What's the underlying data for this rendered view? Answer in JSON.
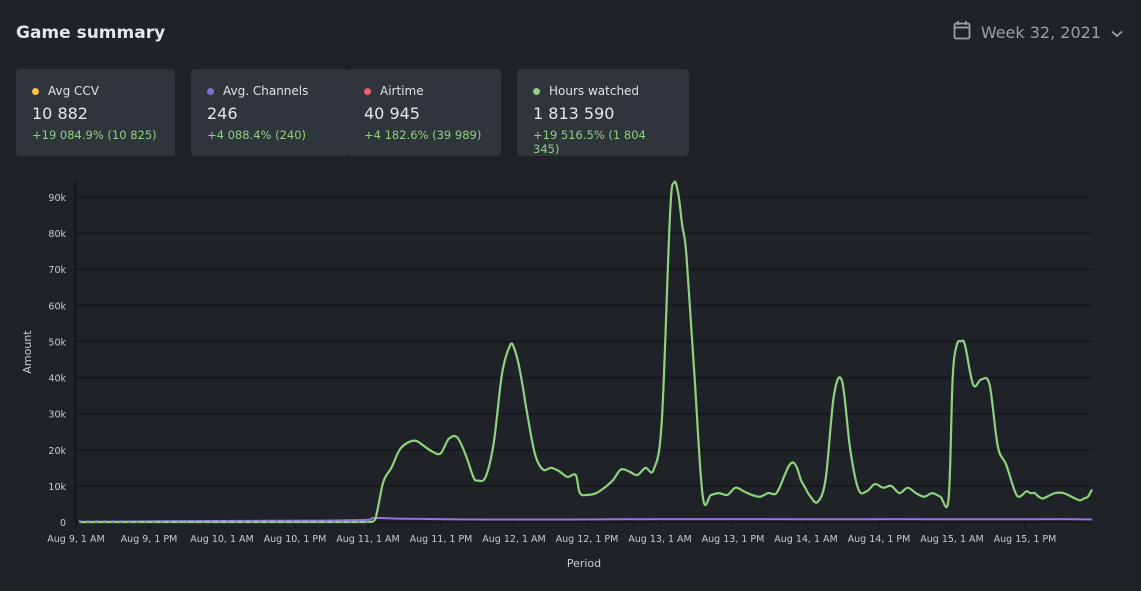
{
  "header": {
    "title": "Game summary",
    "week_label": "Week 32, 2021",
    "calendar_icon": "calendar-icon",
    "chevron_icon": "chevron-down-icon"
  },
  "cards": [
    {
      "label": "Avg CCV",
      "value": "10 882",
      "change": "+19 084.9% (10 825)",
      "color": "#f5c54a"
    },
    {
      "label": "Avg. Channels",
      "value": "246",
      "change": "+4 088.4% (240)",
      "color": "#7b6fd0"
    },
    {
      "label": "Airtime",
      "value": "40 945",
      "change": "+4 182.6% (39 989)",
      "color": "#e8606a"
    },
    {
      "label": "Hours watched",
      "value": "1 813 590",
      "change": "+19 516.5% (1 804 345)",
      "color": "#8fd17f"
    }
  ],
  "chart_data": {
    "type": "line",
    "xlabel": "Period",
    "ylabel": "Amount",
    "ylim": [
      0,
      90000
    ],
    "yticks": [
      "0",
      "10k",
      "20k",
      "30k",
      "40k",
      "50k",
      "60k",
      "70k",
      "80k",
      "90k"
    ],
    "xticks": [
      "Aug 9, 1 AM",
      "Aug 9, 1 PM",
      "Aug 10, 1 AM",
      "Aug 10, 1 PM",
      "Aug 11, 1 AM",
      "Aug 11, 1 PM",
      "Aug 12, 1 AM",
      "Aug 12, 1 PM",
      "Aug 13, 1 AM",
      "Aug 13, 1 PM",
      "Aug 14, 1 AM",
      "Aug 14, 1 PM",
      "Aug 15, 1 AM",
      "Aug 15, 1 PM"
    ],
    "grid": true,
    "series": [
      {
        "name": "Hours watched",
        "color": "#8fd17f",
        "x": [
          0,
          30,
          60,
          70,
          72,
          74,
          76,
          78,
          80,
          82,
          84,
          86,
          88,
          90,
          92,
          94,
          96,
          97,
          99,
          101,
          103,
          105,
          106,
          107,
          108,
          109,
          111,
          113,
          115,
          117,
          119,
          121,
          122,
          124,
          126,
          128,
          130,
          132,
          134,
          136,
          138,
          140,
          142,
          144,
          145,
          146,
          147,
          148,
          150,
          152,
          154,
          156,
          158,
          160,
          162,
          164,
          166,
          168,
          170,
          172,
          173,
          174,
          175,
          176,
          177,
          178,
          180,
          182,
          184,
          186,
          188,
          190,
          192,
          194,
          196,
          198,
          200,
          202,
          204,
          206,
          208,
          210,
          212,
          213,
          214,
          215,
          216,
          218,
          220,
          222,
          224,
          226,
          228,
          229,
          230,
          231,
          232,
          233,
          234,
          235,
          236,
          238,
          240,
          242,
          244,
          245,
          246,
          247
        ],
        "values": [
          0,
          0,
          0,
          0,
          600,
          11000,
          15000,
          20000,
          22000,
          22500,
          21000,
          19500,
          19000,
          23000,
          23500,
          19000,
          12500,
          11500,
          12500,
          22000,
          41000,
          49000,
          48000,
          44000,
          38000,
          31000,
          19000,
          14500,
          15000,
          14000,
          12500,
          13000,
          8000,
          7500,
          8000,
          9500,
          11500,
          14500,
          14000,
          13000,
          15000,
          14500,
          28000,
          85000,
          94000,
          91000,
          82000,
          74000,
          40000,
          7000,
          7500,
          8000,
          7500,
          9500,
          8500,
          7500,
          7000,
          8000,
          8000,
          13000,
          15500,
          16500,
          15000,
          11500,
          9500,
          7500,
          5500,
          12000,
          35000,
          39000,
          20000,
          9000,
          8500,
          10500,
          9500,
          10000,
          8000,
          9500,
          8000,
          7000,
          8000,
          7000,
          6500,
          40000,
          49000,
          50000,
          49000,
          38000,
          39500,
          38000,
          21000,
          16000,
          9000,
          7000,
          7500,
          8500,
          8000,
          8000,
          7000,
          6500,
          7000,
          8000,
          8000,
          7000,
          6000,
          6500,
          7000,
          9000
        ]
      },
      {
        "name": "Avg. Channels",
        "color": "#8f78d6",
        "x": [
          0,
          20,
          40,
          60,
          70,
          72,
          80,
          100,
          120,
          140,
          160,
          180,
          200,
          220,
          240,
          247
        ],
        "values": [
          0,
          200,
          300,
          400,
          600,
          1100,
          900,
          700,
          700,
          800,
          800,
          750,
          800,
          750,
          800,
          700
        ]
      }
    ]
  }
}
